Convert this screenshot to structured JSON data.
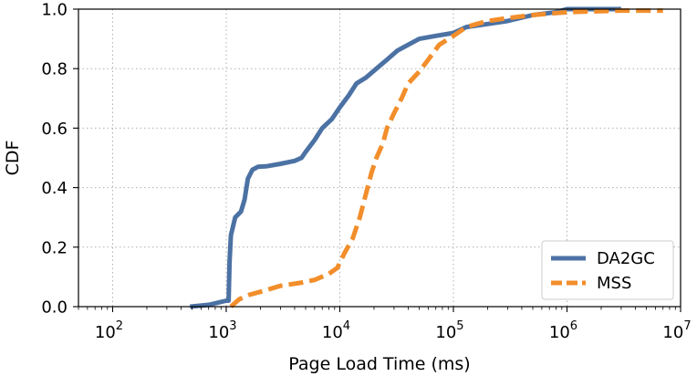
{
  "chart_data": {
    "type": "line",
    "xlabel": "Page Load Time (ms)",
    "ylabel": "CDF",
    "xscale": "log",
    "xlim": [
      50,
      10000000
    ],
    "ylim": [
      0,
      1.0
    ],
    "grid": true,
    "legend_position": "bottom-right",
    "x_ticks": [
      100,
      1000,
      10000,
      100000,
      1000000,
      10000000
    ],
    "x_tick_labels": [
      {
        "base": "10",
        "exp": "2"
      },
      {
        "base": "10",
        "exp": "3"
      },
      {
        "base": "10",
        "exp": "4"
      },
      {
        "base": "10",
        "exp": "5"
      },
      {
        "base": "10",
        "exp": "6"
      },
      {
        "base": "10",
        "exp": "7"
      }
    ],
    "y_ticks": [
      0.0,
      0.2,
      0.4,
      0.6,
      0.8,
      1.0
    ],
    "y_tick_labels": [
      "0.0",
      "0.2",
      "0.4",
      "0.6",
      "0.8",
      "1.0"
    ],
    "series": [
      {
        "name": "DA2GC",
        "color": "#4c72a4",
        "style": "solid",
        "points": [
          [
            480,
            0.0
          ],
          [
            700,
            0.006
          ],
          [
            1000,
            0.02
          ],
          [
            1050,
            0.02
          ],
          [
            1070,
            0.15
          ],
          [
            1100,
            0.24
          ],
          [
            1200,
            0.3
          ],
          [
            1350,
            0.32
          ],
          [
            1450,
            0.36
          ],
          [
            1550,
            0.43
          ],
          [
            1700,
            0.46
          ],
          [
            1900,
            0.47
          ],
          [
            2300,
            0.472
          ],
          [
            3000,
            0.48
          ],
          [
            4000,
            0.49
          ],
          [
            4600,
            0.5
          ],
          [
            5000,
            0.52
          ],
          [
            6000,
            0.56
          ],
          [
            7000,
            0.6
          ],
          [
            8500,
            0.63
          ],
          [
            10000,
            0.67
          ],
          [
            12000,
            0.71
          ],
          [
            14000,
            0.75
          ],
          [
            17000,
            0.77
          ],
          [
            21000,
            0.8
          ],
          [
            26000,
            0.83
          ],
          [
            32000,
            0.86
          ],
          [
            40000,
            0.88
          ],
          [
            50000,
            0.9
          ],
          [
            70000,
            0.91
          ],
          [
            100000,
            0.92
          ],
          [
            130000,
            0.94
          ],
          [
            200000,
            0.95
          ],
          [
            300000,
            0.96
          ],
          [
            500000,
            0.98
          ],
          [
            800000,
            0.99
          ],
          [
            1000000,
            1.0
          ],
          [
            1500000,
            1.0
          ],
          [
            3000000,
            1.0
          ]
        ]
      },
      {
        "name": "MSS",
        "color": "#f28e2b",
        "style": "dashed",
        "points": [
          [
            1100,
            0.0
          ],
          [
            1300,
            0.025
          ],
          [
            1600,
            0.04
          ],
          [
            2000,
            0.05
          ],
          [
            3000,
            0.07
          ],
          [
            4500,
            0.08
          ],
          [
            6000,
            0.09
          ],
          [
            8000,
            0.11
          ],
          [
            9500,
            0.13
          ],
          [
            11000,
            0.18
          ],
          [
            13000,
            0.23
          ],
          [
            15000,
            0.3
          ],
          [
            17000,
            0.38
          ],
          [
            19000,
            0.45
          ],
          [
            21000,
            0.5
          ],
          [
            24000,
            0.55
          ],
          [
            26000,
            0.6
          ],
          [
            30000,
            0.65
          ],
          [
            35000,
            0.7
          ],
          [
            40000,
            0.75
          ],
          [
            50000,
            0.79
          ],
          [
            60000,
            0.83
          ],
          [
            75000,
            0.88
          ],
          [
            100000,
            0.91
          ],
          [
            130000,
            0.94
          ],
          [
            160000,
            0.95
          ],
          [
            200000,
            0.96
          ],
          [
            300000,
            0.97
          ],
          [
            500000,
            0.98
          ],
          [
            1000000,
            0.99
          ],
          [
            3000000,
            0.995
          ],
          [
            7000000,
            0.995
          ]
        ]
      }
    ]
  }
}
